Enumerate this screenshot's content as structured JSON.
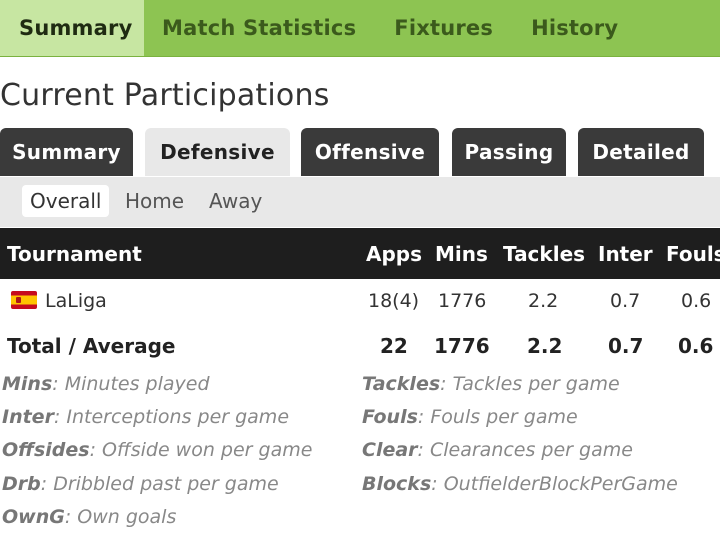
{
  "topnav": {
    "tabs": [
      "Summary",
      "Match Statistics",
      "Fixtures",
      "History"
    ],
    "active_index": 0
  },
  "page_title": "Current Participations",
  "subtabs": {
    "items": [
      "Summary",
      "Defensive",
      "Offensive",
      "Passing",
      "Detailed"
    ],
    "active_index": 1
  },
  "filters": {
    "items": [
      "Overall",
      "Home",
      "Away"
    ],
    "active_index": 0
  },
  "table": {
    "columns": [
      "Tournament",
      "Apps",
      "Mins",
      "Tackles",
      "Inter",
      "Fouls"
    ],
    "rows": [
      {
        "flag": "spain-flag-icon",
        "tournament": "LaLiga",
        "apps": "18(4)",
        "mins": "1776",
        "tackles": "2.2",
        "inter": "0.7",
        "fouls": "0.6"
      }
    ],
    "total": {
      "label": "Total / Average",
      "apps": "22",
      "mins": "1776",
      "tackles": "2.2",
      "inter": "0.7",
      "fouls": "0.6"
    }
  },
  "legend": {
    "left": [
      {
        "key": "Mins",
        "desc": ": Minutes played"
      },
      {
        "key": "Inter",
        "desc": ": Interceptions per game"
      },
      {
        "key": "Offsides",
        "desc": ": Offside won per game"
      },
      {
        "key": "Drb",
        "desc": ": Dribbled past per game"
      },
      {
        "key": "OwnG",
        "desc": ": Own goals"
      }
    ],
    "right": [
      {
        "key": "Tackles",
        "desc": ": Tackles per game"
      },
      {
        "key": "Fouls",
        "desc": ": Fouls per game"
      },
      {
        "key": "Clear",
        "desc": ": Clearances per game"
      },
      {
        "key": "Blocks",
        "desc": ": OutfielderBlockPerGame"
      }
    ]
  },
  "colors": {
    "nav_green": "#8dc452",
    "nav_active": "#c7e6a2",
    "subtab_dark": "#3a3a3a",
    "header_dark": "#1e1e1e"
  }
}
